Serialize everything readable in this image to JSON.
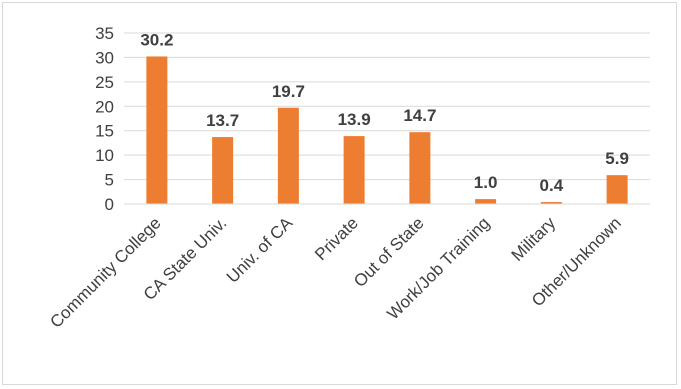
{
  "chart_data": {
    "type": "bar",
    "categories": [
      "Community College",
      "CA State Univ.",
      "Univ. of CA",
      "Private",
      "Out of State",
      "Work/Job Training",
      "Military",
      "Other/Unknown"
    ],
    "values": [
      30.2,
      13.7,
      19.7,
      13.9,
      14.7,
      1.0,
      0.4,
      5.9
    ],
    "data_labels": [
      "30.2",
      "13.7",
      "19.7",
      "13.9",
      "14.7",
      "1.0",
      "0.4",
      "5.9"
    ],
    "y_ticks": [
      "0",
      "5",
      "10",
      "15",
      "20",
      "25",
      "30",
      "35"
    ],
    "ylim": [
      0,
      35
    ],
    "grid": true,
    "bar_color": "#ed7d31",
    "grid_color": "#d9d9d9",
    "text_color": "#404040"
  }
}
